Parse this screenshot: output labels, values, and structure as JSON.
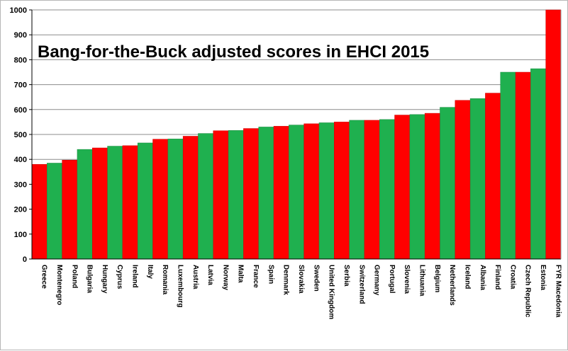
{
  "chart_data": {
    "type": "bar",
    "title": "Bang-for-the-Buck adjusted scores in EHCI 2015",
    "xlabel": "",
    "ylabel": "",
    "ylim": [
      0,
      1000
    ],
    "yticks": [
      0,
      100,
      200,
      300,
      400,
      500,
      600,
      700,
      800,
      900,
      1000
    ],
    "grid": "horizontal",
    "categories": [
      "Greece",
      "Montenegro",
      "Poland",
      "Bulgaria",
      "Hungary",
      "Cyprus",
      "Ireland",
      "Italy",
      "Romania",
      "Luxembourg",
      "Austria",
      "Latvia",
      "Norway",
      "Malta",
      "France",
      "Spain",
      "Denmark",
      "Slovakia",
      "Sweden",
      "United Kingdom",
      "Serbia",
      "Switzerland",
      "Germany",
      "Portugal",
      "Slovenia",
      "Lithuania",
      "Belgium",
      "Netherlands",
      "Iceland",
      "Albania",
      "Finland",
      "Croatia",
      "Czech Republic",
      "Estonia",
      "FYR Macedonia"
    ],
    "values": [
      380,
      385,
      397,
      440,
      446,
      453,
      455,
      466,
      481,
      482,
      493,
      504,
      515,
      516,
      524,
      530,
      533,
      538,
      543,
      547,
      550,
      557,
      557,
      560,
      578,
      580,
      585,
      609,
      637,
      644,
      666,
      750,
      750,
      764,
      1000
    ],
    "bar_colors": [
      "#ff0000",
      "#1fb04f",
      "#ff0000",
      "#1fb04f",
      "#ff0000",
      "#1fb04f",
      "#ff0000",
      "#1fb04f",
      "#ff0000",
      "#1fb04f",
      "#ff0000",
      "#1fb04f",
      "#ff0000",
      "#1fb04f",
      "#ff0000",
      "#1fb04f",
      "#ff0000",
      "#1fb04f",
      "#ff0000",
      "#1fb04f",
      "#ff0000",
      "#1fb04f",
      "#ff0000",
      "#1fb04f",
      "#ff0000",
      "#1fb04f",
      "#ff0000",
      "#1fb04f",
      "#ff0000",
      "#1fb04f",
      "#ff0000",
      "#1fb04f",
      "#ff0000",
      "#1fb04f",
      "#ff0000"
    ]
  }
}
